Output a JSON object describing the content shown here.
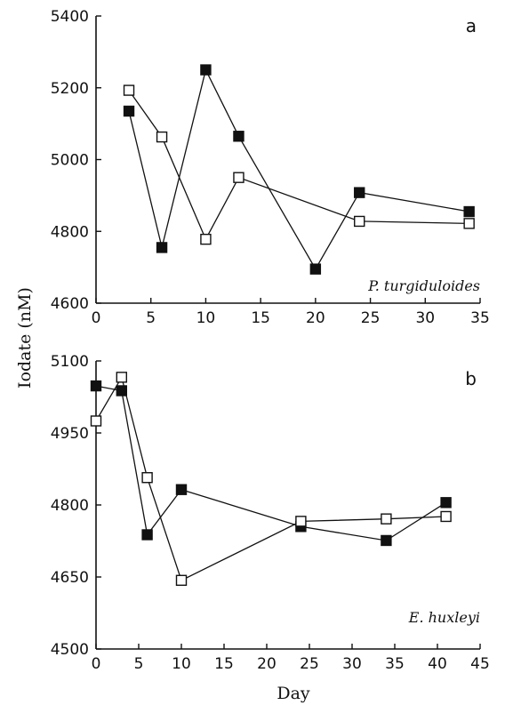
{
  "shared_axis": {
    "ylabel": "Iodate (nM)",
    "xlabel": "Day"
  },
  "chart_data": [
    {
      "type": "line",
      "panel_label": "a",
      "annotation": "P. turgiduloides",
      "xlim": [
        0,
        35
      ],
      "ylim": [
        4600,
        5400
      ],
      "x_ticks": [
        0,
        5,
        10,
        15,
        20,
        25,
        30,
        35
      ],
      "y_ticks": [
        4600,
        4800,
        5000,
        5200,
        5400
      ],
      "grid": false,
      "series": [
        {
          "marker": "filled-square",
          "points": [
            [
              3,
              5135
            ],
            [
              6,
              4755
            ],
            [
              10,
              5250
            ],
            [
              13,
              5065
            ],
            [
              20,
              4695
            ],
            [
              24,
              4908
            ],
            [
              34,
              4855
            ]
          ]
        },
        {
          "marker": "open-square",
          "points": [
            [
              3,
              5193
            ],
            [
              6,
              5063
            ],
            [
              10,
              4778
            ],
            [
              13,
              4950
            ],
            [
              24,
              4828
            ],
            [
              34,
              4822
            ]
          ]
        }
      ]
    },
    {
      "type": "line",
      "panel_label": "b",
      "annotation": "E. huxleyi",
      "xlim": [
        0,
        45
      ],
      "ylim": [
        4500,
        5100
      ],
      "x_ticks": [
        0,
        5,
        10,
        15,
        20,
        25,
        30,
        35,
        40,
        45
      ],
      "y_ticks": [
        4500,
        4650,
        4800,
        4950,
        5100
      ],
      "grid": false,
      "series": [
        {
          "marker": "filled-square",
          "points": [
            [
              0,
              5048
            ],
            [
              3,
              5038
            ],
            [
              6,
              4738
            ],
            [
              10,
              4832
            ],
            [
              24,
              4755
            ],
            [
              34,
              4726
            ],
            [
              41,
              4805
            ]
          ]
        },
        {
          "marker": "open-square",
          "points": [
            [
              0,
              4975
            ],
            [
              3,
              5066
            ],
            [
              6,
              4857
            ],
            [
              10,
              4643
            ],
            [
              24,
              4766
            ],
            [
              34,
              4771
            ],
            [
              41,
              4776
            ]
          ]
        }
      ]
    }
  ]
}
